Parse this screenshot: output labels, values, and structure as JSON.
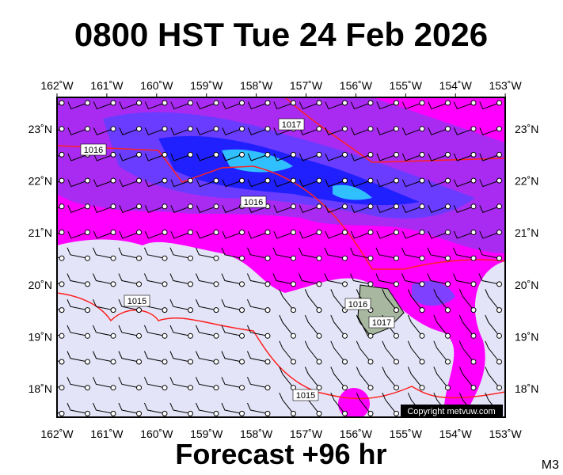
{
  "header": {
    "title": "0800 HST Tue 24 Feb 2026"
  },
  "map": {
    "lon_labels": [
      "162˚W",
      "161˚W",
      "160˚W",
      "159˚W",
      "158˚W",
      "157˚W",
      "156˚W",
      "155˚W",
      "154˚W",
      "153˚W"
    ],
    "lat_labels": [
      "23˚N",
      "22˚N",
      "21˚N",
      "20˚N",
      "19˚N",
      "18˚N"
    ],
    "isobar_labels": [
      "1016",
      "1017",
      "1016",
      "1015",
      "1015",
      "1016",
      "1017"
    ],
    "copyright": "Copyright metvuw.com"
  },
  "footer": {
    "forecast": "Forecast +96 hr",
    "code": "M3"
  }
}
